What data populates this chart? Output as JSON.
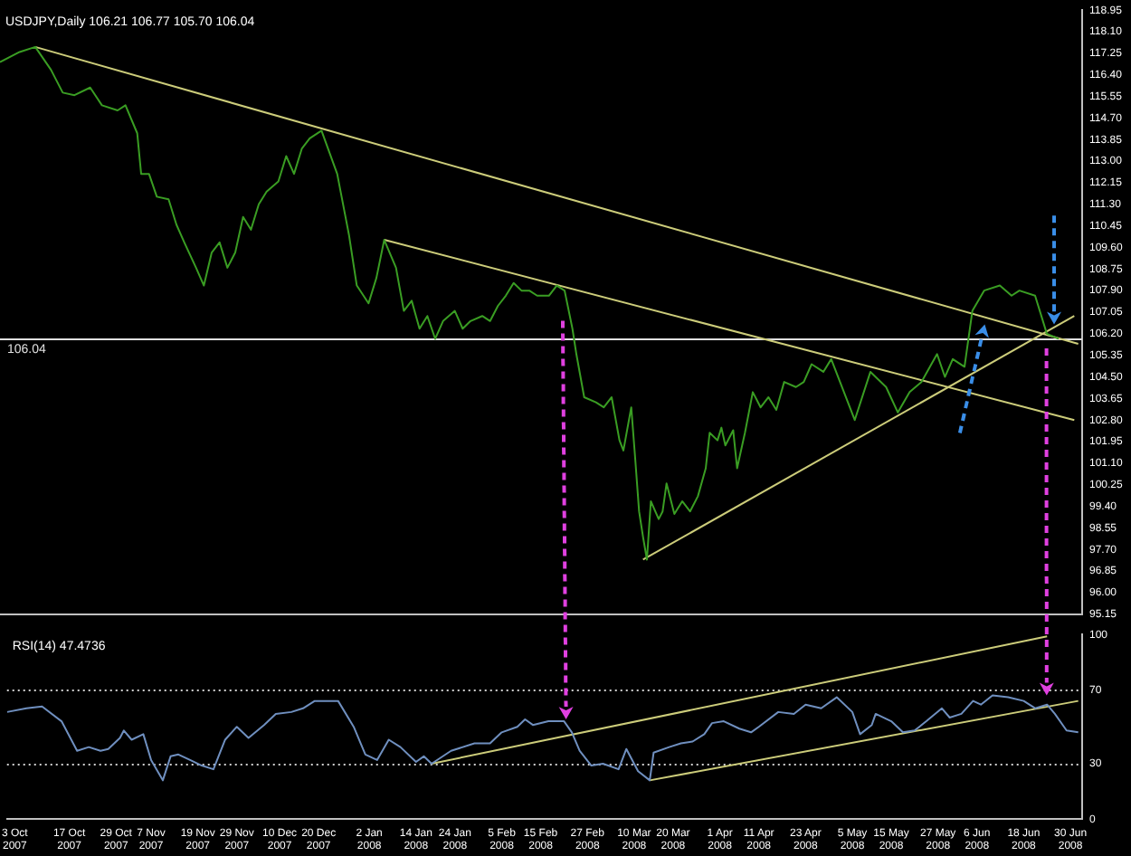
{
  "chart_data": [
    {
      "type": "line",
      "title": "USDJPY,Daily 106.21 106.77 105.70 106.04",
      "tick_labels": "y",
      "xlim": [
        "2007-10-01",
        "2008-07-03"
      ],
      "ylim": [
        95.15,
        118.95
      ],
      "yticks": [
        {
          "value": 95.15,
          "label": "95.15"
        },
        {
          "value": 96,
          "label": "96.00"
        },
        {
          "value": 96.85,
          "label": "96.85"
        },
        {
          "value": 97.7,
          "label": "97.70"
        },
        {
          "value": 98.55,
          "label": "98.55"
        },
        {
          "value": 99.4,
          "label": "99.40"
        },
        {
          "value": 100.25,
          "label": "100.25"
        },
        {
          "value": 101.1,
          "label": "101.10"
        },
        {
          "value": 101.95,
          "label": "101.95"
        },
        {
          "value": 102.8,
          "label": "102.80"
        },
        {
          "value": 103.65,
          "label": "103.65"
        },
        {
          "value": 104.5,
          "label": "104.50"
        },
        {
          "value": 105.35,
          "label": "105.35"
        },
        {
          "value": 106.2,
          "label": "106.20"
        },
        {
          "value": 107.05,
          "label": "107.05"
        },
        {
          "value": 107.9,
          "label": "107.90"
        },
        {
          "value": 108.75,
          "label": "108.75"
        },
        {
          "value": 109.6,
          "label": "109.60"
        },
        {
          "value": 110.45,
          "label": "110.45"
        },
        {
          "value": 111.3,
          "label": "111.30"
        },
        {
          "value": 112.15,
          "label": "112.15"
        },
        {
          "value": 113,
          "label": "113.00"
        },
        {
          "value": 113.85,
          "label": "113.85"
        },
        {
          "value": 114.7,
          "label": "114.70"
        },
        {
          "value": 115.55,
          "label": "115.55"
        },
        {
          "value": 116.4,
          "label": "116.40"
        },
        {
          "value": 117.25,
          "label": "117.25"
        },
        {
          "value": 118.1,
          "label": "118.10"
        },
        {
          "value": 118.95,
          "label": "118.95"
        }
      ],
      "ref_lines": [
        {
          "axis": "y",
          "value": 106.04,
          "label": "106.04",
          "color": "#e0e0e0"
        }
      ],
      "series": [
        {
          "color": "#3a9d23",
          "x": [
            "2007-10-01",
            "2007-10-06",
            "2007-10-10",
            "2007-10-14",
            "2007-10-17",
            "2007-10-20",
            "2007-10-24",
            "2007-10-27",
            "2007-10-31",
            "2007-11-02",
            "2007-11-05",
            "2007-11-06",
            "2007-11-08",
            "2007-11-10",
            "2007-11-13",
            "2007-11-15",
            "2007-11-17",
            "2007-11-20",
            "2007-11-22",
            "2007-11-24",
            "2007-11-26",
            "2007-11-28",
            "2007-11-30",
            "2007-12-02",
            "2007-12-04",
            "2007-12-06",
            "2007-12-08",
            "2007-12-11",
            "2007-12-13",
            "2007-12-15",
            "2007-12-17",
            "2007-12-19",
            "2007-12-22",
            "2007-12-26",
            "2007-12-29",
            "2007-12-31",
            "2008-01-03",
            "2008-01-05",
            "2008-01-07",
            "2008-01-10",
            "2008-01-12",
            "2008-01-14",
            "2008-01-16",
            "2008-01-18",
            "2008-01-20",
            "2008-01-22",
            "2008-01-25",
            "2008-01-27",
            "2008-01-29",
            "2008-02-01",
            "2008-02-03",
            "2008-02-05",
            "2008-02-07",
            "2008-02-09",
            "2008-02-11",
            "2008-02-13",
            "2008-02-15",
            "2008-02-18",
            "2008-02-20",
            "2008-02-22",
            "2008-02-24",
            "2008-02-25",
            "2008-02-27",
            "2008-03-01",
            "2008-03-03",
            "2008-03-05",
            "2008-03-07",
            "2008-03-08",
            "2008-03-10",
            "2008-03-11",
            "2008-03-12",
            "2008-03-13",
            "2008-03-14",
            "2008-03-15",
            "2008-03-17",
            "2008-03-18",
            "2008-03-19",
            "2008-03-21",
            "2008-03-23",
            "2008-03-25",
            "2008-03-27",
            "2008-03-29",
            "2008-03-30",
            "2008-04-01",
            "2008-04-02",
            "2008-04-03",
            "2008-04-05",
            "2008-04-06",
            "2008-04-08",
            "2008-04-10",
            "2008-04-12",
            "2008-04-14",
            "2008-04-16",
            "2008-04-18",
            "2008-04-21",
            "2008-04-23",
            "2008-04-25",
            "2008-04-28",
            "2008-04-30",
            "2008-05-06",
            "2008-05-10",
            "2008-05-14",
            "2008-05-17",
            "2008-05-20",
            "2008-05-23",
            "2008-05-27",
            "2008-05-29",
            "2008-05-31",
            "2008-06-03",
            "2008-06-05",
            "2008-06-08",
            "2008-06-12",
            "2008-06-15",
            "2008-06-17",
            "2008-06-21",
            "2008-06-24",
            "2008-06-27"
          ],
          "values": [
            116.9,
            117.3,
            117.5,
            116.6,
            115.7,
            115.6,
            115.9,
            115.2,
            115.0,
            115.2,
            114.1,
            112.5,
            112.5,
            111.6,
            111.5,
            110.5,
            109.8,
            108.8,
            108.1,
            109.4,
            109.8,
            108.8,
            109.4,
            110.8,
            110.3,
            111.3,
            111.8,
            112.2,
            113.2,
            112.5,
            113.5,
            113.9,
            114.2,
            112.5,
            110.1,
            108.1,
            107.4,
            108.4,
            109.9,
            108.8,
            107.1,
            107.5,
            106.4,
            106.9,
            106.0,
            106.7,
            107.1,
            106.4,
            106.7,
            106.9,
            106.7,
            107.3,
            107.7,
            108.2,
            107.9,
            107.9,
            107.7,
            107.7,
            108.1,
            107.9,
            106.4,
            105.4,
            103.7,
            103.5,
            103.3,
            103.7,
            102.0,
            101.6,
            103.3,
            101.3,
            99.2,
            98.2,
            97.3,
            99.6,
            98.9,
            99.2,
            100.3,
            99.1,
            99.6,
            99.2,
            99.8,
            100.9,
            102.3,
            102.0,
            102.5,
            101.8,
            102.4,
            100.9,
            102.3,
            103.9,
            103.3,
            103.7,
            103.2,
            104.3,
            104.1,
            104.3,
            105.0,
            104.7,
            105.2,
            102.8,
            104.7,
            104.1,
            103.1,
            103.9,
            104.3,
            105.4,
            104.5,
            105.2,
            104.9,
            107.1,
            107.9,
            108.1,
            107.7,
            107.9,
            107.7,
            106.2,
            106.0
          ]
        },
        {
          "color": "#cccc7a",
          "x": [
            "2007-10-10",
            "2008-07-02"
          ],
          "values": [
            117.5,
            105.8
          ]
        },
        {
          "color": "#cccc7a",
          "x": [
            "2008-01-07",
            "2008-07-01"
          ],
          "values": [
            109.9,
            102.8
          ]
        },
        {
          "color": "#cccc7a",
          "x": [
            "2008-03-13",
            "2008-07-01"
          ],
          "values": [
            97.3,
            106.9
          ]
        }
      ]
    },
    {
      "type": "line",
      "title": "RSI(14) 47.4736",
      "xlim": [
        "2007-10-01",
        "2008-07-03"
      ],
      "xticks": [
        {
          "value": "2007-10-03",
          "label": "3 Oct 2007"
        },
        {
          "value": "2007-10-17",
          "label": "17 Oct 2007"
        },
        {
          "value": "2007-10-29",
          "label": "29 Oct 2007"
        },
        {
          "value": "2007-11-07",
          "label": "7 Nov 2007"
        },
        {
          "value": "2007-11-19",
          "label": "19 Nov 2007"
        },
        {
          "value": "2007-11-29",
          "label": "29 Nov 2007"
        },
        {
          "value": "2007-12-10",
          "label": "10 Dec 2007"
        },
        {
          "value": "2007-12-20",
          "label": "20 Dec 2007"
        },
        {
          "value": "2008-01-02",
          "label": "2 Jan 2008"
        },
        {
          "value": "2008-01-14",
          "label": "14 Jan 2008"
        },
        {
          "value": "2008-01-24",
          "label": "24 Jan 2008"
        },
        {
          "value": "2008-02-05",
          "label": "5 Feb 2008"
        },
        {
          "value": "2008-02-15",
          "label": "15 Feb 2008"
        },
        {
          "value": "2008-02-27",
          "label": "27 Feb 2008"
        },
        {
          "value": "2008-03-10",
          "label": "10 Mar 2008"
        },
        {
          "value": "2008-03-20",
          "label": "20 Mar 2008"
        },
        {
          "value": "2008-04-01",
          "label": "1 Apr 2008"
        },
        {
          "value": "2008-04-11",
          "label": "11 Apr 2008"
        },
        {
          "value": "2008-04-23",
          "label": "23 Apr 2008"
        },
        {
          "value": "2008-05-05",
          "label": "5 May 2008"
        },
        {
          "value": "2008-05-15",
          "label": "15 May 2008"
        },
        {
          "value": "2008-05-27",
          "label": "27 May 2008"
        },
        {
          "value": "2008-06-06",
          "label": "6 Jun 2008"
        },
        {
          "value": "2008-06-18",
          "label": "18 Jun 2008"
        },
        {
          "value": "2008-06-30",
          "label": "30 Jun 2008"
        }
      ],
      "ylim": [
        0,
        100
      ],
      "yticks": [
        0,
        30,
        70,
        100
      ],
      "ref_lines": [
        {
          "axis": "y",
          "value": 30,
          "color": "#d0d0d0",
          "line_style": "dotted"
        },
        {
          "axis": "y",
          "value": 70,
          "color": "#d0d0d0",
          "line_style": "dotted"
        }
      ],
      "series": [
        {
          "color": "#6f8fbf",
          "x": [
            "2007-10-01",
            "2007-10-06",
            "2007-10-10",
            "2007-10-15",
            "2007-10-19",
            "2007-10-22",
            "2007-10-25",
            "2007-10-27",
            "2007-10-30",
            "2007-10-31",
            "2007-11-02",
            "2007-11-05",
            "2007-11-07",
            "2007-11-10",
            "2007-11-12",
            "2007-11-14",
            "2007-11-17",
            "2007-11-20",
            "2007-11-23",
            "2007-11-26",
            "2007-11-29",
            "2007-12-02",
            "2007-12-06",
            "2007-12-09",
            "2007-12-13",
            "2007-12-16",
            "2007-12-19",
            "2007-12-25",
            "2007-12-29",
            "2008-01-01",
            "2008-01-04",
            "2008-01-07",
            "2008-01-10",
            "2008-01-14",
            "2008-01-16",
            "2008-01-18",
            "2008-01-23",
            "2008-01-29",
            "2008-02-02",
            "2008-02-05",
            "2008-02-09",
            "2008-02-11",
            "2008-02-13",
            "2008-02-17",
            "2008-02-21",
            "2008-02-23",
            "2008-02-25",
            "2008-02-28",
            "2008-03-02",
            "2008-03-06",
            "2008-03-08",
            "2008-03-11",
            "2008-03-14",
            "2008-03-15",
            "2008-03-19",
            "2008-03-22",
            "2008-03-25",
            "2008-03-28",
            "2008-03-30",
            "2008-04-02",
            "2008-04-06",
            "2008-04-09",
            "2008-04-11",
            "2008-04-16",
            "2008-04-20",
            "2008-04-23",
            "2008-04-27",
            "2008-05-01",
            "2008-05-05",
            "2008-05-07",
            "2008-05-10",
            "2008-05-11",
            "2008-05-15",
            "2008-05-18",
            "2008-05-21",
            "2008-05-24",
            "2008-05-28",
            "2008-05-30",
            "2008-06-02",
            "2008-06-05",
            "2008-06-07",
            "2008-06-10",
            "2008-06-14",
            "2008-06-18",
            "2008-06-21",
            "2008-06-24",
            "2008-06-26",
            "2008-06-29",
            "2008-07-02"
          ],
          "values": [
            58,
            60,
            61,
            53,
            37,
            39,
            37,
            38,
            44,
            48,
            43,
            46,
            32,
            21,
            34,
            35,
            32,
            29,
            27,
            43,
            50,
            44,
            51,
            57,
            58,
            60,
            64,
            64,
            50,
            35,
            32,
            43,
            39,
            31,
            34,
            30,
            37,
            41,
            41,
            47,
            50,
            54,
            51,
            53,
            53,
            47,
            37,
            29,
            30,
            27,
            38,
            26,
            21,
            36,
            39,
            41,
            42,
            46,
            52,
            53,
            49,
            47,
            50,
            58,
            57,
            62,
            60,
            66,
            58,
            46,
            51,
            57,
            53,
            47,
            48,
            53,
            60,
            55,
            57,
            64,
            62,
            67,
            66,
            64,
            60,
            62,
            57,
            48,
            47
          ]
        },
        {
          "color": "#cccc7a",
          "x": [
            "2008-01-18",
            "2008-06-24"
          ],
          "values": [
            30,
            99
          ]
        },
        {
          "color": "#cccc7a",
          "x": [
            "2008-03-14",
            "2008-07-02"
          ],
          "values": [
            21,
            64
          ]
        }
      ]
    }
  ]
}
